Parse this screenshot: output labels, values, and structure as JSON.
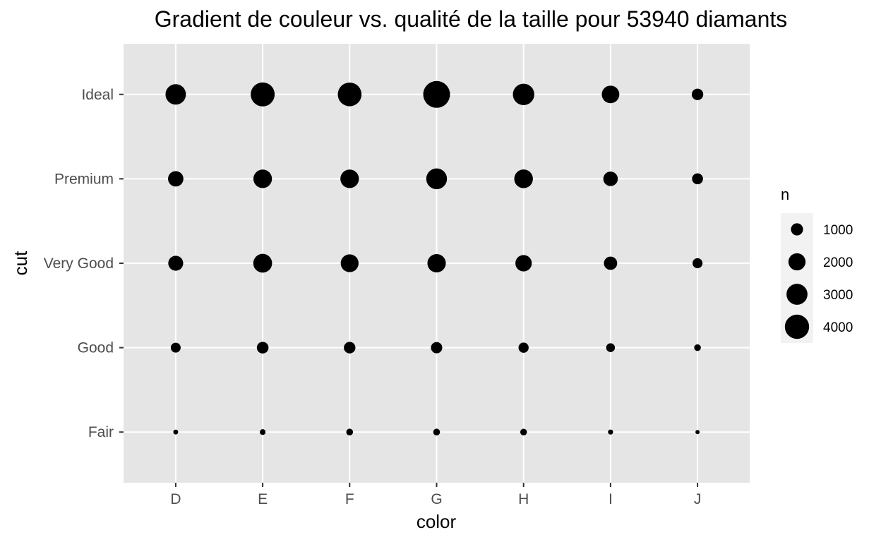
{
  "chart_data": {
    "type": "scatter",
    "title": "Gradient de couleur vs. qualité de la taille pour 53940 diamants",
    "xlabel": "color",
    "ylabel": "cut",
    "x_categories": [
      "D",
      "E",
      "F",
      "G",
      "H",
      "I",
      "J"
    ],
    "y_categories": [
      "Fair",
      "Good",
      "Very Good",
      "Premium",
      "Ideal"
    ],
    "size_variable": "n",
    "points": [
      {
        "color": "D",
        "cut": "Fair",
        "n": 163
      },
      {
        "color": "E",
        "cut": "Fair",
        "n": 224
      },
      {
        "color": "F",
        "cut": "Fair",
        "n": 312
      },
      {
        "color": "G",
        "cut": "Fair",
        "n": 314
      },
      {
        "color": "H",
        "cut": "Fair",
        "n": 303
      },
      {
        "color": "I",
        "cut": "Fair",
        "n": 175
      },
      {
        "color": "J",
        "cut": "Fair",
        "n": 119
      },
      {
        "color": "D",
        "cut": "Good",
        "n": 662
      },
      {
        "color": "E",
        "cut": "Good",
        "n": 933
      },
      {
        "color": "F",
        "cut": "Good",
        "n": 909
      },
      {
        "color": "G",
        "cut": "Good",
        "n": 871
      },
      {
        "color": "H",
        "cut": "Good",
        "n": 702
      },
      {
        "color": "I",
        "cut": "Good",
        "n": 522
      },
      {
        "color": "J",
        "cut": "Good",
        "n": 307
      },
      {
        "color": "D",
        "cut": "Very Good",
        "n": 1513
      },
      {
        "color": "E",
        "cut": "Very Good",
        "n": 2400
      },
      {
        "color": "F",
        "cut": "Very Good",
        "n": 2164
      },
      {
        "color": "G",
        "cut": "Very Good",
        "n": 2299
      },
      {
        "color": "H",
        "cut": "Very Good",
        "n": 1824
      },
      {
        "color": "I",
        "cut": "Very Good",
        "n": 1204
      },
      {
        "color": "J",
        "cut": "Very Good",
        "n": 678
      },
      {
        "color": "D",
        "cut": "Premium",
        "n": 1603
      },
      {
        "color": "E",
        "cut": "Premium",
        "n": 2337
      },
      {
        "color": "F",
        "cut": "Premium",
        "n": 2331
      },
      {
        "color": "G",
        "cut": "Premium",
        "n": 2924
      },
      {
        "color": "H",
        "cut": "Premium",
        "n": 2360
      },
      {
        "color": "I",
        "cut": "Premium",
        "n": 1428
      },
      {
        "color": "J",
        "cut": "Premium",
        "n": 808
      },
      {
        "color": "D",
        "cut": "Ideal",
        "n": 2834
      },
      {
        "color": "E",
        "cut": "Ideal",
        "n": 3903
      },
      {
        "color": "F",
        "cut": "Ideal",
        "n": 3826
      },
      {
        "color": "G",
        "cut": "Ideal",
        "n": 4884
      },
      {
        "color": "H",
        "cut": "Ideal",
        "n": 3115
      },
      {
        "color": "I",
        "cut": "Ideal",
        "n": 2093
      },
      {
        "color": "J",
        "cut": "Ideal",
        "n": 896
      }
    ],
    "legend": {
      "title": "n",
      "values": [
        1000,
        2000,
        3000,
        4000
      ],
      "labels": [
        "1000",
        "2000",
        "3000",
        "4000"
      ],
      "position": "right"
    },
    "grid": true,
    "colors": {
      "panel": "#e5e5e5",
      "grid": "#ffffff",
      "point": "#000000",
      "tick": "#4d4d4d",
      "legend_key": "#f2f2f2"
    }
  }
}
